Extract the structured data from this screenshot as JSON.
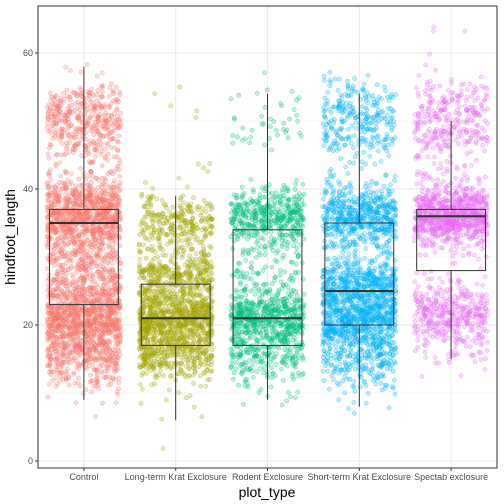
{
  "chart_data": {
    "type": "boxplot-jitter",
    "xlabel": "plot_type",
    "ylabel": "hindfoot_length",
    "ylim": [
      -2,
      66
    ],
    "yticks": [
      0,
      20,
      40,
      60
    ],
    "grid": true,
    "legend": "none",
    "categories": [
      "Control",
      "Long-term Krat Exclosure",
      "Rodent Exclosure",
      "Short-term Krat Exclosure",
      "Spectab exclosure"
    ],
    "colors": [
      "#F8766D",
      "#A3A500",
      "#00BF7D",
      "#00B0F6",
      "#E76BF3"
    ],
    "boxes": [
      {
        "name": "Control",
        "q1": 23,
        "median": 35,
        "q3": 37,
        "whisker_low": 9,
        "whisker_high": 58
      },
      {
        "name": "Long-term Krat Exclosure",
        "q1": 17,
        "median": 21,
        "q3": 26,
        "whisker_low": 6,
        "whisker_high": 39
      },
      {
        "name": "Rodent Exclosure",
        "q1": 17,
        "median": 21,
        "q3": 34,
        "whisker_low": 9,
        "whisker_high": 54
      },
      {
        "name": "Short-term Krat Exclosure",
        "q1": 20,
        "median": 25,
        "q3": 35,
        "whisker_low": 8,
        "whisker_high": 54
      },
      {
        "name": "Spectab exclosure",
        "q1": 28,
        "median": 36,
        "q3": 37,
        "whisker_low": 15,
        "whisker_high": 50
      }
    ],
    "point_clusters": [
      [
        {
          "center": 50,
          "spread": 3,
          "n": 420
        },
        {
          "center": 36,
          "spread": 3,
          "n": 900
        },
        {
          "center": 27,
          "spread": 3,
          "n": 350
        },
        {
          "center": 21,
          "spread": 2.5,
          "n": 700
        },
        {
          "center": 16,
          "spread": 2.5,
          "n": 350
        },
        {
          "center": 12,
          "spread": 2,
          "n": 40
        }
      ],
      [
        {
          "center": 50,
          "spread": 4,
          "n": 8
        },
        {
          "center": 35,
          "spread": 2.5,
          "n": 280
        },
        {
          "center": 27,
          "spread": 2,
          "n": 380
        },
        {
          "center": 21,
          "spread": 2,
          "n": 650
        },
        {
          "center": 16,
          "spread": 2,
          "n": 380
        },
        {
          "center": 10,
          "spread": 3,
          "n": 12
        },
        {
          "center": 2,
          "spread": 0.5,
          "n": 1
        }
      ],
      [
        {
          "center": 49,
          "spread": 4,
          "n": 45
        },
        {
          "center": 36,
          "spread": 2,
          "n": 420
        },
        {
          "center": 28,
          "spread": 3,
          "n": 130
        },
        {
          "center": 21,
          "spread": 2,
          "n": 500
        },
        {
          "center": 16,
          "spread": 2,
          "n": 220
        },
        {
          "center": 11,
          "spread": 2,
          "n": 15
        }
      ],
      [
        {
          "center": 50,
          "spread": 3,
          "n": 280
        },
        {
          "center": 36,
          "spread": 2.5,
          "n": 550
        },
        {
          "center": 26,
          "spread": 2,
          "n": 450
        },
        {
          "center": 21,
          "spread": 2,
          "n": 500
        },
        {
          "center": 16,
          "spread": 2.5,
          "n": 320
        },
        {
          "center": 10,
          "spread": 2,
          "n": 12
        }
      ],
      [
        {
          "center": 50,
          "spread": 3.5,
          "n": 300
        },
        {
          "center": 36,
          "spread": 2.2,
          "n": 800
        },
        {
          "center": 22,
          "spread": 2.5,
          "n": 350
        },
        {
          "center": 17,
          "spread": 2,
          "n": 50
        },
        {
          "center": 64,
          "spread": 0.3,
          "n": 1
        }
      ]
    ]
  }
}
